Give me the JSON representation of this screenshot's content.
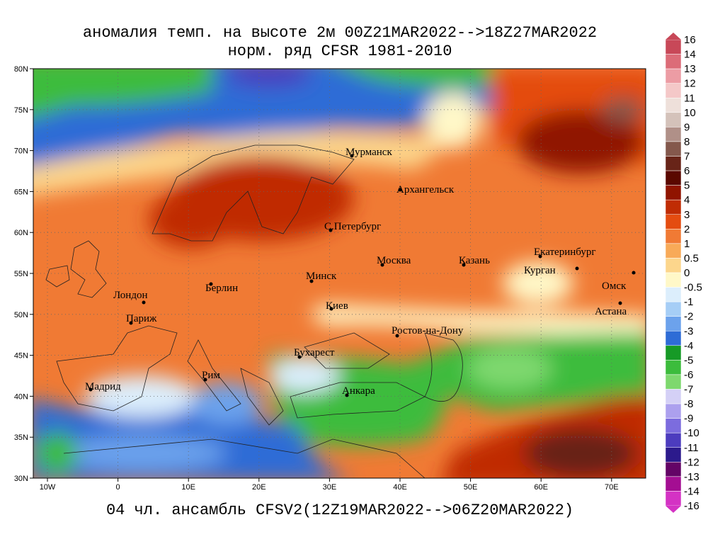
{
  "title": "аномалия темп. на высоте 2м 00Z21MAR2022-->18Z27MAR2022",
  "subtitle": "норм. ряд CFSR 1981-2010",
  "footer": "04 чл. ансамбль CFSV2(12Z19MAR2022-->06Z20MAR2022)",
  "lat_labels": [
    "80N",
    "75N",
    "70N",
    "65N",
    "60N",
    "55N",
    "50N",
    "45N",
    "40N",
    "35N",
    "30N"
  ],
  "lon_labels": [
    "10W",
    "0",
    "10E",
    "20E",
    "30E",
    "40E",
    "50E",
    "60E",
    "70E"
  ],
  "cities": [
    "Мурманск",
    "Архангельск",
    "С.Петербург",
    "Москва",
    "Казань",
    "Екатеринбург",
    "Курган",
    "Омск",
    "Астана",
    "Минск",
    "Берлин",
    "Лондон",
    "Париж",
    "Киев",
    "Ростов-на-Дону",
    "Бухарест",
    "Рим",
    "Мадрид",
    "Анкара"
  ],
  "colorbar": {
    "labels": [
      16,
      14,
      13,
      12,
      11,
      10,
      9,
      8,
      7,
      6,
      5,
      4,
      3,
      2,
      1,
      0.5,
      0,
      -0.5,
      -1,
      -2,
      -3,
      -4,
      -5,
      -6,
      -7,
      -8,
      -9,
      -10,
      -11,
      -12,
      -13,
      -14,
      -16
    ],
    "colors": [
      "#c84858",
      "#dc6c78",
      "#ec9ca4",
      "#f4c8c8",
      "#eee0da",
      "#d4c2ba",
      "#b09088",
      "#84584c",
      "#682418",
      "#5a0800",
      "#901400",
      "#c02c04",
      "#e44c10",
      "#f07a34",
      "#f8aa58",
      "#fcd68c",
      "#fff8c8",
      "#dceefc",
      "#a6cef6",
      "#6ca2ec",
      "#2e6cd6",
      "#169a26",
      "#3cbc3c",
      "#7ed86e",
      "#d4d0f6",
      "#aca0ee",
      "#7c6cde",
      "#4c3cbe",
      "#2c1a8c",
      "#640466",
      "#a40e92",
      "#d432c4"
    ]
  }
}
